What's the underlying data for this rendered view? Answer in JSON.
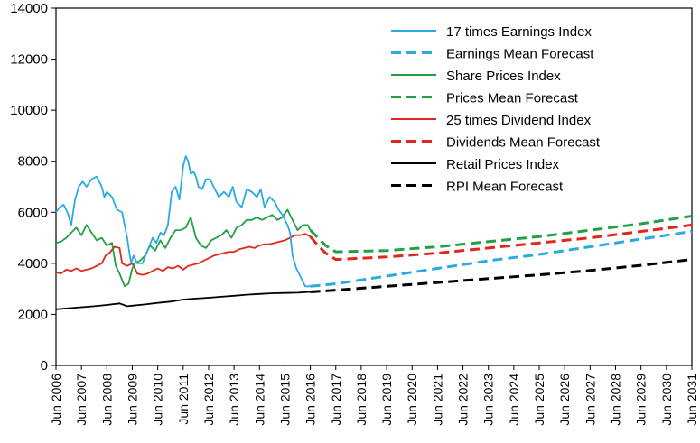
{
  "chart_data": {
    "type": "line",
    "title": "",
    "xlabel": "",
    "ylabel": "",
    "ylim": [
      0,
      14000
    ],
    "yticks": [
      0,
      2000,
      4000,
      6000,
      8000,
      10000,
      12000,
      14000
    ],
    "xlim": [
      2006.0,
      2031.0
    ],
    "xticks": [
      2006,
      2007,
      2008,
      2009,
      2010,
      2011,
      2012,
      2013,
      2014,
      2015,
      2016,
      2017,
      2018,
      2019,
      2020,
      2021,
      2022,
      2023,
      2024,
      2025,
      2026,
      2027,
      2028,
      2029,
      2030,
      2031
    ],
    "xtick_prefix": "Jun ",
    "grid": false,
    "legend_position": "top-right",
    "series": [
      {
        "name": "17 times Earnings Index",
        "color": "#29abe2",
        "style": "solid",
        "x": [
          2006.0,
          2006.15,
          2006.3,
          2006.45,
          2006.6,
          2006.75,
          2006.9,
          2007.05,
          2007.2,
          2007.4,
          2007.6,
          2007.8,
          2007.9,
          2008.0,
          2008.2,
          2008.4,
          2008.6,
          2008.8,
          2008.95,
          2009.05,
          2009.2,
          2009.4,
          2009.6,
          2009.8,
          2009.95,
          2010.1,
          2010.25,
          2010.4,
          2010.55,
          2010.7,
          2010.85,
          2011.0,
          2011.1,
          2011.2,
          2011.3,
          2011.4,
          2011.5,
          2011.6,
          2011.75,
          2011.9,
          2012.05,
          2012.2,
          2012.4,
          2012.6,
          2012.8,
          2012.95,
          2013.1,
          2013.3,
          2013.5,
          2013.7,
          2013.9,
          2014.05,
          2014.2,
          2014.4,
          2014.6,
          2014.75,
          2014.9,
          2015.1,
          2015.2,
          2015.3,
          2015.45,
          2015.6,
          2015.8,
          2015.9,
          2016.0
        ],
        "y": [
          6000,
          6200,
          6300,
          6000,
          5500,
          6500,
          7000,
          7200,
          7000,
          7300,
          7400,
          7000,
          6600,
          6800,
          6600,
          6100,
          6000,
          5000,
          4000,
          4300,
          4000,
          4000,
          4500,
          5000,
          4800,
          5200,
          5100,
          5500,
          6800,
          7000,
          6500,
          7800,
          8200,
          8000,
          7500,
          7600,
          7400,
          7000,
          6900,
          7300,
          7300,
          7000,
          6600,
          6800,
          6600,
          7000,
          6400,
          6200,
          6900,
          6800,
          6600,
          6900,
          6200,
          6600,
          6400,
          6100,
          5900,
          5500,
          5200,
          4300,
          3800,
          3500,
          3100,
          3100,
          3100
        ]
      },
      {
        "name": "Earnings Mean Forecast",
        "color": "#29abe2",
        "style": "dashed",
        "x": [
          2016.0,
          2017.0,
          2019.0,
          2021.0,
          2023.0,
          2025.0,
          2027.0,
          2029.0,
          2031.0
        ],
        "y": [
          3100,
          3200,
          3500,
          3800,
          4100,
          4350,
          4650,
          4950,
          5250
        ]
      },
      {
        "name": "Share Prices Index",
        "color": "#22a045",
        "style": "solid",
        "x": [
          2006.0,
          2006.2,
          2006.4,
          2006.6,
          2006.8,
          2007.0,
          2007.2,
          2007.4,
          2007.6,
          2007.8,
          2008.0,
          2008.2,
          2008.35,
          2008.5,
          2008.7,
          2008.85,
          2009.0,
          2009.1,
          2009.3,
          2009.5,
          2009.7,
          2009.9,
          2010.1,
          2010.3,
          2010.5,
          2010.7,
          2010.9,
          2011.1,
          2011.3,
          2011.5,
          2011.7,
          2011.9,
          2012.1,
          2012.3,
          2012.5,
          2012.7,
          2012.9,
          2013.1,
          2013.3,
          2013.5,
          2013.7,
          2013.9,
          2014.1,
          2014.3,
          2014.5,
          2014.7,
          2014.9,
          2015.1,
          2015.3,
          2015.5,
          2015.7,
          2015.9,
          2016.0
        ],
        "y": [
          4800,
          4850,
          5000,
          5200,
          5400,
          5100,
          5500,
          5200,
          4900,
          5000,
          4700,
          4800,
          3900,
          3600,
          3100,
          3200,
          3800,
          4000,
          4100,
          4300,
          4700,
          4500,
          4900,
          4600,
          5000,
          5300,
          5300,
          5400,
          5800,
          5000,
          4700,
          4600,
          4900,
          5000,
          5100,
          5300,
          5000,
          5400,
          5500,
          5700,
          5700,
          5800,
          5700,
          5800,
          5900,
          5700,
          5800,
          6100,
          5700,
          5300,
          5500,
          5500,
          5300
        ]
      },
      {
        "name": "Prices Mean Forecast",
        "color": "#22a045",
        "style": "dashed",
        "x": [
          2016.0,
          2016.3,
          2016.6,
          2017.0,
          2019.0,
          2021.0,
          2023.0,
          2025.0,
          2027.0,
          2029.0,
          2031.0
        ],
        "y": [
          5300,
          5000,
          4700,
          4450,
          4500,
          4650,
          4850,
          5050,
          5300,
          5550,
          5850
        ]
      },
      {
        "name": "25 times Dividend Index",
        "color": "#e3261b",
        "style": "solid",
        "x": [
          2006.0,
          2006.2,
          2006.4,
          2006.6,
          2006.8,
          2007.0,
          2007.2,
          2007.4,
          2007.6,
          2007.8,
          2007.95,
          2008.1,
          2008.3,
          2008.5,
          2008.6,
          2008.8,
          2009.0,
          2009.2,
          2009.4,
          2009.6,
          2009.8,
          2010.0,
          2010.2,
          2010.4,
          2010.6,
          2010.8,
          2011.0,
          2011.2,
          2011.4,
          2011.6,
          2011.8,
          2012.0,
          2012.2,
          2012.4,
          2012.6,
          2012.8,
          2013.0,
          2013.2,
          2013.4,
          2013.6,
          2013.8,
          2014.0,
          2014.2,
          2014.4,
          2014.6,
          2014.8,
          2015.0,
          2015.2,
          2015.4,
          2015.6,
          2015.8,
          2016.0
        ],
        "y": [
          3650,
          3600,
          3750,
          3700,
          3800,
          3700,
          3750,
          3800,
          3900,
          4000,
          4300,
          4400,
          4650,
          4600,
          4000,
          3900,
          4000,
          3600,
          3550,
          3600,
          3700,
          3800,
          3700,
          3850,
          3800,
          3900,
          3750,
          3900,
          3950,
          4000,
          4100,
          4200,
          4300,
          4350,
          4400,
          4450,
          4450,
          4550,
          4600,
          4650,
          4600,
          4700,
          4750,
          4750,
          4800,
          4850,
          4900,
          5000,
          5100,
          5100,
          5150,
          5050
        ]
      },
      {
        "name": "Dividends Mean Forecast",
        "color": "#e3261b",
        "style": "dashed",
        "x": [
          2016.0,
          2016.3,
          2016.6,
          2017.0,
          2019.0,
          2021.0,
          2023.0,
          2025.0,
          2027.0,
          2029.0,
          2031.0
        ],
        "y": [
          5050,
          4700,
          4400,
          4150,
          4250,
          4400,
          4600,
          4800,
          5000,
          5250,
          5500
        ]
      },
      {
        "name": "Retail Prices Index",
        "color": "#000000",
        "style": "solid",
        "x": [
          2006.0,
          2006.5,
          2007.0,
          2007.5,
          2008.0,
          2008.5,
          2008.8,
          2009.0,
          2009.5,
          2010.0,
          2010.5,
          2011.0,
          2011.5,
          2012.0,
          2012.5,
          2013.0,
          2013.5,
          2014.0,
          2014.5,
          2015.0,
          2015.5,
          2016.0
        ],
        "y": [
          2200,
          2240,
          2280,
          2320,
          2370,
          2430,
          2320,
          2340,
          2390,
          2450,
          2500,
          2580,
          2620,
          2650,
          2690,
          2730,
          2770,
          2800,
          2830,
          2840,
          2850,
          2880
        ]
      },
      {
        "name": "RPI Mean Forecast",
        "color": "#000000",
        "style": "dashed",
        "x": [
          2016.0,
          2017.0,
          2019.0,
          2021.0,
          2023.0,
          2025.0,
          2027.0,
          2029.0,
          2031.0
        ],
        "y": [
          2880,
          2950,
          3100,
          3250,
          3400,
          3550,
          3720,
          3920,
          4150
        ]
      }
    ]
  }
}
